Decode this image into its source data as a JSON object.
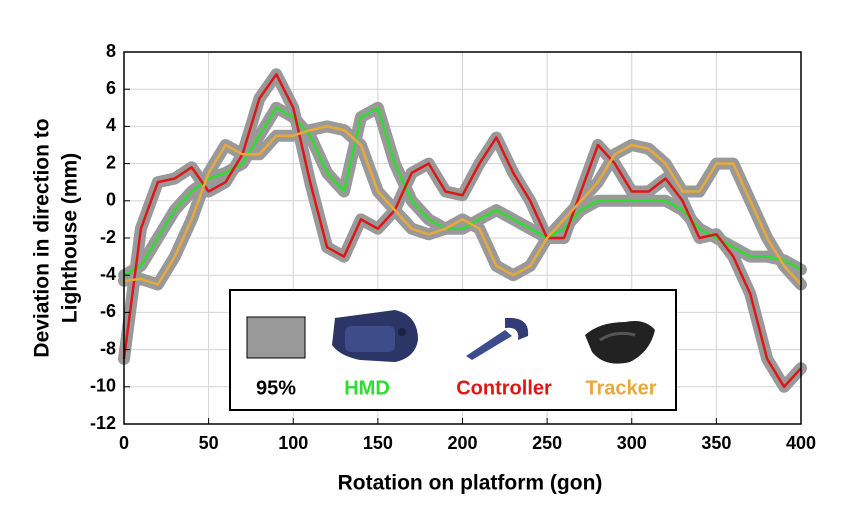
{
  "chart_data": {
    "type": "line",
    "x_label": "Rotation on platform (gon)",
    "y_label": [
      "Deviation in direction to",
      "Lighthouse (mm)"
    ],
    "x": [
      0,
      10,
      20,
      30,
      40,
      50,
      60,
      70,
      80,
      90,
      100,
      110,
      120,
      130,
      140,
      150,
      160,
      170,
      180,
      190,
      200,
      210,
      220,
      230,
      240,
      250,
      260,
      270,
      280,
      290,
      300,
      310,
      320,
      330,
      340,
      350,
      360,
      370,
      380,
      390,
      400
    ],
    "series": [
      {
        "name": "HMD",
        "color": "#2fdc2f",
        "values": [
          -4,
          -3.5,
          -2,
          -0.5,
          0.5,
          1.2,
          1.5,
          2,
          3.5,
          5,
          4.5,
          3.5,
          1.5,
          0.5,
          4.5,
          5,
          2,
          0,
          -1,
          -1.5,
          -1.5,
          -1,
          -0.5,
          -1,
          -1.5,
          -2,
          -1.5,
          -0.5,
          0,
          0,
          0,
          0,
          0,
          -0.5,
          -1.5,
          -2,
          -2.5,
          -3,
          -3,
          -3.2,
          -3.7
        ]
      },
      {
        "name": "Controller",
        "color": "#dd1616",
        "values": [
          -8.5,
          -1.5,
          1,
          1.2,
          1.8,
          0.5,
          1,
          2.5,
          5.5,
          6.8,
          5,
          1,
          -2.5,
          -3,
          -1,
          -1.5,
          -0.5,
          1.5,
          2,
          0.5,
          0.3,
          2,
          3.4,
          1.5,
          0,
          -2,
          -2,
          0.5,
          3,
          2,
          0.5,
          0.5,
          1.2,
          0,
          -2,
          -1.8,
          -3,
          -5,
          -8.5,
          -10,
          -9
        ]
      },
      {
        "name": "Tracker",
        "color": "#e8a93a",
        "values": [
          -4.3,
          -4.2,
          -4.5,
          -3,
          -1,
          1.5,
          3,
          2.5,
          2.5,
          3.5,
          3.5,
          3.8,
          4,
          3.8,
          3,
          0.5,
          -0.5,
          -1.5,
          -1.8,
          -1.5,
          -1,
          -1.5,
          -3.5,
          -4,
          -3.5,
          -2,
          -1,
          0,
          1,
          2.5,
          3,
          2.8,
          2,
          0.5,
          0.5,
          2,
          2,
          0,
          -2,
          -3.5,
          -4.5
        ]
      }
    ],
    "band_label": "95%",
    "band_color": "#999999",
    "xlim": [
      0,
      400
    ],
    "xticks": [
      0,
      50,
      100,
      150,
      200,
      250,
      300,
      350,
      400
    ],
    "ylim": [
      -12,
      8
    ],
    "yticks": [
      -12,
      -10,
      -8,
      -6,
      -4,
      -2,
      0,
      2,
      4,
      6,
      8
    ],
    "grid": true
  }
}
